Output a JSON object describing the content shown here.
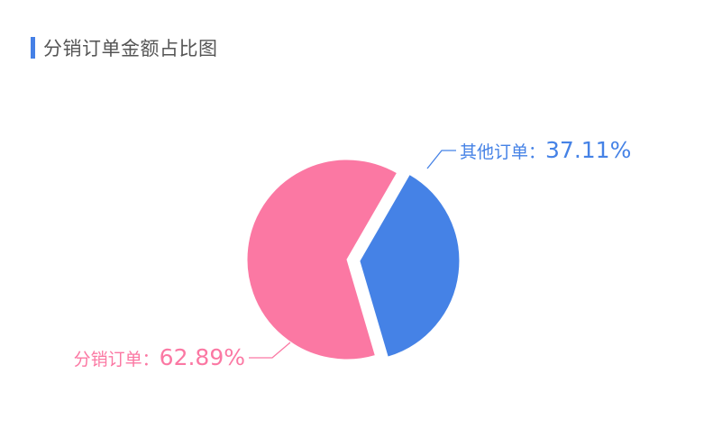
{
  "header": {
    "title": "分销订单金额占比图",
    "accent_color": "#4580e6"
  },
  "chart_data": {
    "type": "pie",
    "title": "分销订单金额占比图",
    "slices": [
      {
        "name": "其他订单",
        "value": 37.11,
        "display": "37.11%",
        "color": "#4582e6"
      },
      {
        "name": "分销订单",
        "value": 62.89,
        "display": "62.89%",
        "color": "#fb78a3"
      }
    ],
    "label_separator": "：",
    "grid": false,
    "legend": "none"
  }
}
